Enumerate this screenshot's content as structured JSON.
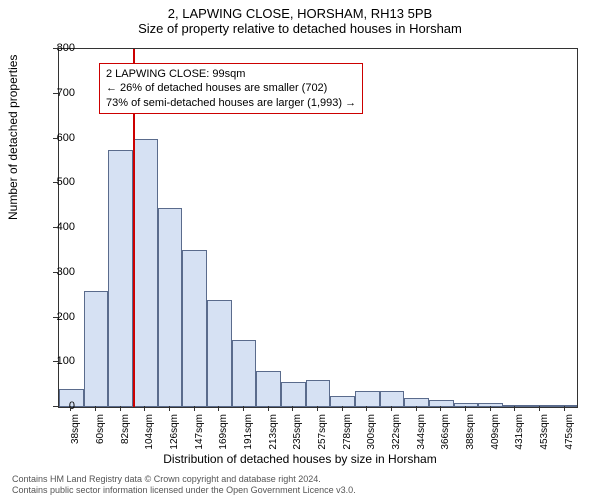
{
  "title_line1": "2, LAPWING CLOSE, HORSHAM, RH13 5PB",
  "title_line2": "Size of property relative to detached houses in Horsham",
  "ylabel": "Number of detached properties",
  "xlabel": "Distribution of detached houses by size in Horsham",
  "chart": {
    "type": "histogram",
    "ymax": 800,
    "ytick_step": 100,
    "bar_fill": "#d6e1f3",
    "bar_border": "#5a6b8c",
    "background_color": "#ffffff",
    "categories": [
      "38sqm",
      "60sqm",
      "82sqm",
      "104sqm",
      "126sqm",
      "147sqm",
      "169sqm",
      "191sqm",
      "213sqm",
      "235sqm",
      "257sqm",
      "278sqm",
      "300sqm",
      "322sqm",
      "344sqm",
      "366sqm",
      "388sqm",
      "409sqm",
      "431sqm",
      "453sqm",
      "475sqm"
    ],
    "values": [
      40,
      260,
      575,
      598,
      445,
      350,
      240,
      150,
      80,
      55,
      60,
      25,
      35,
      35,
      20,
      15,
      10,
      8,
      5,
      5,
      2
    ],
    "marker_color": "#cc0000",
    "marker_bin_index": 3
  },
  "info_box": {
    "line1": "2 LAPWING CLOSE: 99sqm",
    "line2": "← 26% of detached houses are smaller (702)",
    "line3": "73% of semi-detached houses are larger (1,993) →"
  },
  "footer": {
    "line1": "Contains HM Land Registry data © Crown copyright and database right 2024.",
    "line2": "Contains public sector information licensed under the Open Government Licence v3.0."
  },
  "fonts": {
    "title_size": 13,
    "label_size": 12,
    "tick_size": 11
  }
}
